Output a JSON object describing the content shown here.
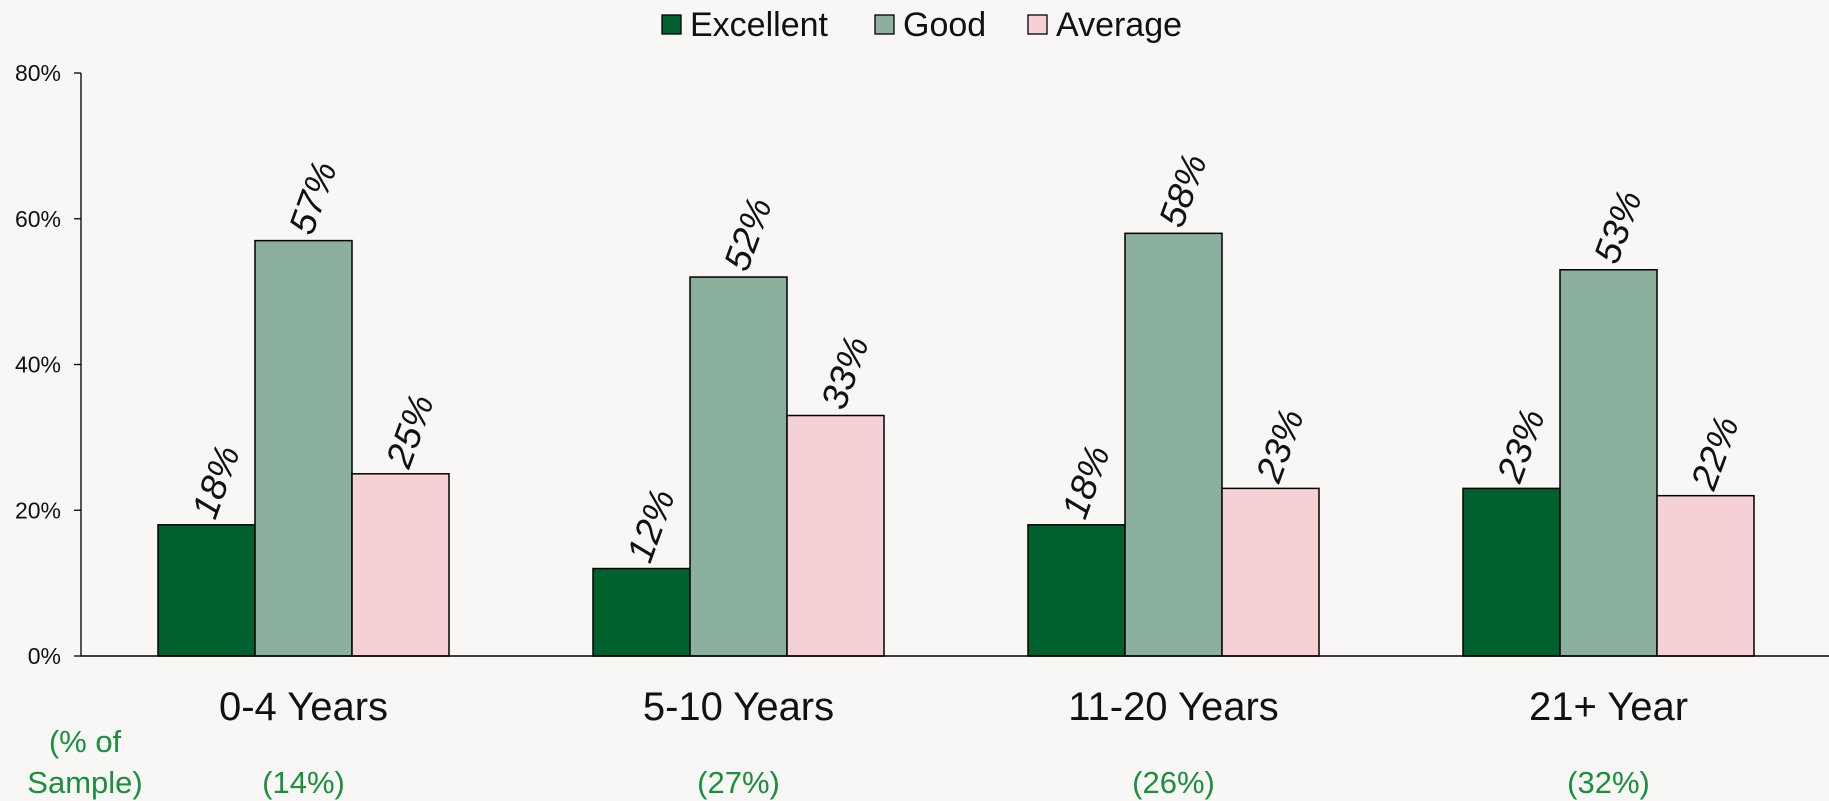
{
  "chart_data": {
    "type": "bar",
    "categories": [
      "0-4 Years",
      "5-10 Years",
      "11-20 Years",
      "21+ Year"
    ],
    "series": [
      {
        "name": "Excellent",
        "values": [
          18,
          12,
          18,
          23
        ],
        "labels": [
          "18%",
          "12%",
          "18%",
          "23%"
        ],
        "color": "#00602e"
      },
      {
        "name": "Good",
        "values": [
          57,
          52,
          58,
          53
        ],
        "labels": [
          "57%",
          "52%",
          "58%",
          "53%"
        ],
        "color": "#8bb09d"
      },
      {
        "name": "Average",
        "values": [
          25,
          33,
          23,
          22
        ],
        "labels": [
          "25%",
          "33%",
          "23%",
          "22%"
        ],
        "color": "#f5d1d6"
      }
    ],
    "ylim": [
      0,
      80
    ],
    "yticks": [
      0,
      20,
      40,
      60,
      80
    ],
    "ytick_labels": [
      "0%",
      "20%",
      "40%",
      "60%",
      "80%"
    ],
    "grid": false,
    "legend_position": "top-center",
    "sample_header": [
      "(% of",
      "Sample)"
    ],
    "sample_shares": [
      "(14%)",
      "(27%)",
      "(26%)",
      "(32%)"
    ],
    "sample_color": "#1a8f3c"
  }
}
